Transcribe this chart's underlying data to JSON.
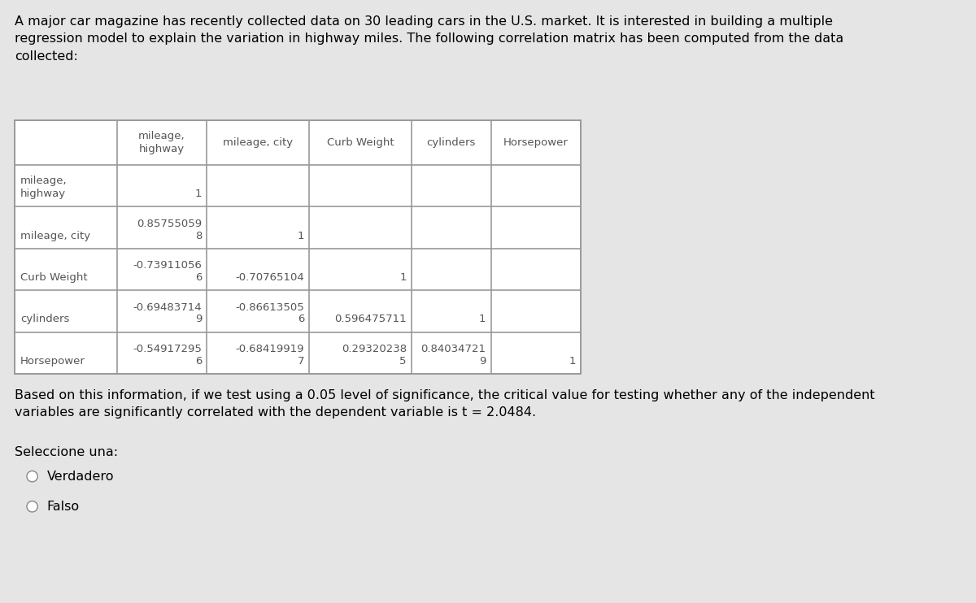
{
  "title_text": "A major car magazine has recently collected data on 30 leading cars in the U.S. market. It is interested in building a multiple\nregression model to explain the variation in highway miles. The following correlation matrix has been computed from the data\ncollected:",
  "background_color": "#e5e5e5",
  "note_text": "Based on this information, if we test using a 0.05 level of significance, the critical value for testing whether any of the independent\nvariables are significantly correlated with the dependent variable is t = 2.0484.",
  "select_text": "Seleccione una:",
  "option1": "Verdadero",
  "option2": "Falso",
  "title_fontsize": 11.5,
  "table_fontsize": 9.5,
  "body_fontsize": 11.5,
  "col_headers": [
    "",
    "mileage,\nhighway",
    "mileage, city",
    "Curb Weight",
    "cylinders",
    "Horsepower"
  ],
  "table_rows": [
    {
      "top_vals": [
        "mileage,",
        "",
        "",
        "",
        "",
        ""
      ],
      "bot_vals": [
        "highway",
        "1",
        "",
        "",
        "",
        ""
      ]
    },
    {
      "top_vals": [
        "",
        "0.85755059",
        "",
        "",
        "",
        ""
      ],
      "bot_vals": [
        "mileage, city",
        "8",
        "1",
        "",
        "",
        ""
      ]
    },
    {
      "top_vals": [
        "",
        "-0.73911056",
        "",
        "",
        "",
        ""
      ],
      "bot_vals": [
        "Curb Weight",
        "6",
        "-0.70765104",
        "1",
        "",
        ""
      ]
    },
    {
      "top_vals": [
        "",
        "-0.69483714",
        "-0.86613505",
        "",
        "",
        ""
      ],
      "bot_vals": [
        "cylinders",
        "9",
        "6",
        "0.596475711",
        "1",
        ""
      ]
    },
    {
      "top_vals": [
        "",
        "-0.54917295",
        "-0.68419919",
        "0.29320238",
        "0.84034721",
        ""
      ],
      "bot_vals": [
        "Horsepower",
        "6",
        "7",
        "5",
        "9",
        "1"
      ]
    }
  ],
  "border_color": "#999999",
  "text_color": "#555555"
}
